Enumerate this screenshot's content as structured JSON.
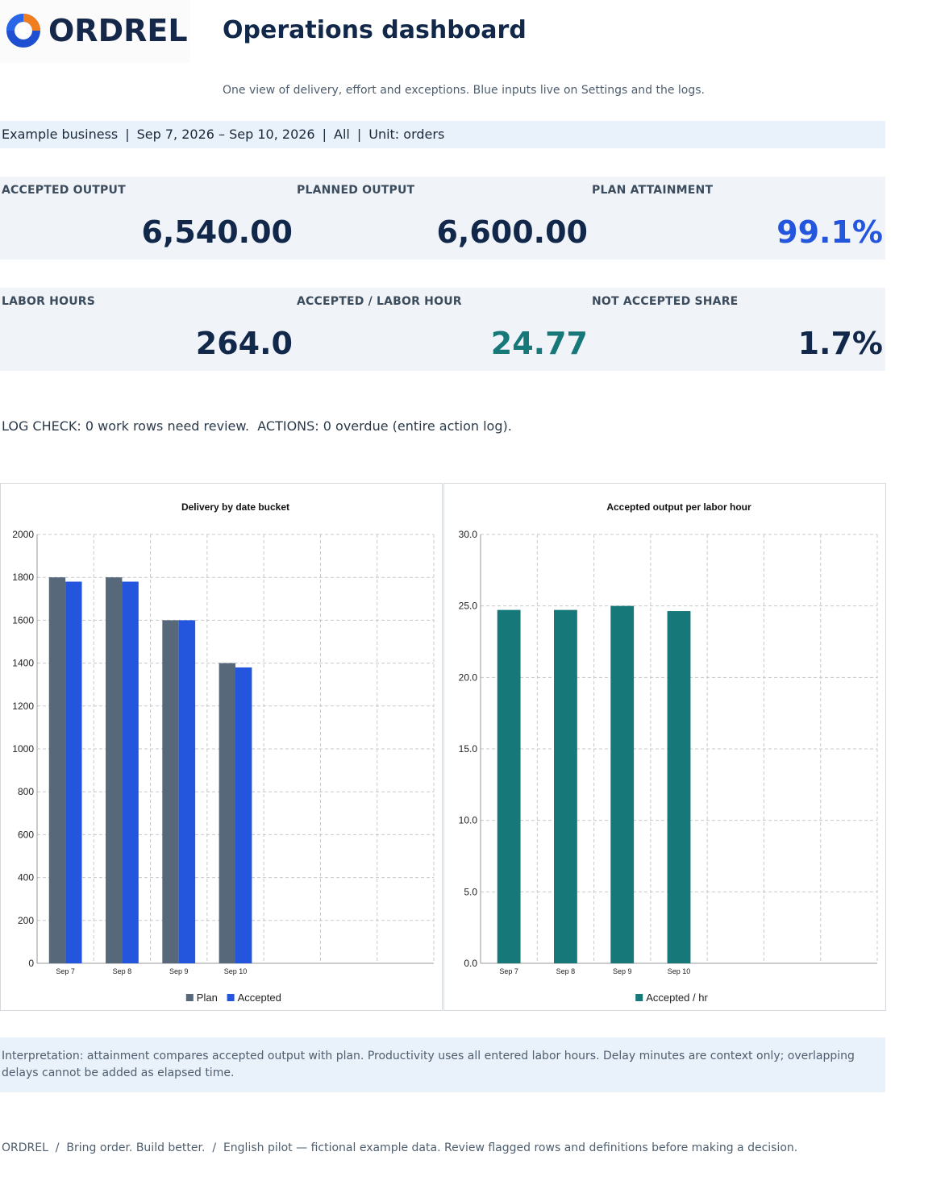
{
  "brand": {
    "name": "ORDREL",
    "colors": {
      "navy": "#16284a",
      "blue": "#2356dc",
      "teal": "#17787a",
      "slate": "#56687a",
      "orange": "#f07d1e"
    }
  },
  "header": {
    "title": "Operations dashboard",
    "subtitle": "One view of delivery, effort and exceptions. Blue inputs live on Settings and the logs."
  },
  "filters": {
    "business": "Example business",
    "date_range": "Sep 7, 2026 – Sep 10, 2026",
    "scope": "All",
    "unit": "Unit: orders",
    "separator": "|"
  },
  "kpis": {
    "row1": [
      {
        "label": "ACCEPTED OUTPUT",
        "value": "6,540.00",
        "tone": "navy"
      },
      {
        "label": "PLANNED OUTPUT",
        "value": "6,600.00",
        "tone": "navy"
      },
      {
        "label": "PLAN ATTAINMENT",
        "value": "99.1%",
        "tone": "blue"
      }
    ],
    "row2": [
      {
        "label": "LABOR HOURS",
        "value": "264.0",
        "tone": "navy"
      },
      {
        "label": "ACCEPTED / LABOR HOUR",
        "value": "24.77",
        "tone": "teal"
      },
      {
        "label": "NOT ACCEPTED SHARE",
        "value": "1.7%",
        "tone": "navy"
      }
    ]
  },
  "log_check": "LOG CHECK: 0 work rows need review.  ACTIONS: 0 overdue (entire action log).",
  "chart_data": [
    {
      "type": "bar",
      "title": "Delivery by date bucket",
      "categories": [
        "Sep 7",
        "Sep 8",
        "Sep 9",
        "Sep 10",
        "",
        "",
        ""
      ],
      "series": [
        {
          "name": "Plan",
          "color": "#56687a",
          "values": [
            1800,
            1800,
            1600,
            1400,
            null,
            null,
            null
          ]
        },
        {
          "name": "Accepted",
          "color": "#2356dc",
          "values": [
            1780,
            1780,
            1600,
            1380,
            null,
            null,
            null
          ]
        }
      ],
      "ylim": [
        0,
        2000
      ],
      "yticks": [
        "0",
        "200",
        "400",
        "600",
        "800",
        "1000",
        "1200",
        "1400",
        "1600",
        "1800",
        "2000"
      ],
      "grid": true,
      "legend": "bottom"
    },
    {
      "type": "bar",
      "title": "Accepted output per labor hour",
      "categories": [
        "Sep 7",
        "Sep 8",
        "Sep 9",
        "Sep 10",
        "",
        "",
        ""
      ],
      "series": [
        {
          "name": "Accepted / hr",
          "color": "#17787a",
          "values": [
            24.72,
            24.72,
            25.0,
            24.64,
            null,
            null,
            null
          ]
        }
      ],
      "ylim": [
        0,
        30
      ],
      "yticks": [
        "0.0",
        "5.0",
        "10.0",
        "15.0",
        "20.0",
        "25.0",
        "30.0"
      ],
      "grid": true,
      "legend": "bottom"
    }
  ],
  "interpretation": "Interpretation: attainment compares accepted output with plan. Productivity uses all entered labor hours. Delay minutes are context only; overlapping delays cannot be added as elapsed time.",
  "footer": "ORDREL  /  Bring order. Build better.  /  English pilot — fictional example data. Review flagged rows and definitions before making a decision."
}
